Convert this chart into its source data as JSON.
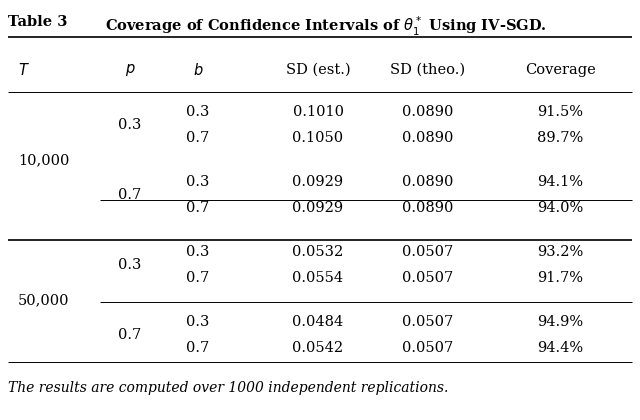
{
  "title": "Table 3",
  "caption": "Coverage of Confidence Intervals of $\\theta_1^*$ Using IV-SGD.",
  "headers": [
    "T",
    "p",
    "b",
    "SD (est.)",
    "SD (theo.)",
    "Coverage"
  ],
  "rows": [
    {
      "T": "10,000",
      "p": "0.3",
      "b": "0.3",
      "sd_est": "0.1010",
      "sd_theo": "0.0890",
      "coverage": "91.5%"
    },
    {
      "T": "",
      "p": "",
      "b": "0.7",
      "sd_est": "0.1050",
      "sd_theo": "0.0890",
      "coverage": "89.7%"
    },
    {
      "T": "",
      "p": "0.7",
      "b": "0.3",
      "sd_est": "0.0929",
      "sd_theo": "0.0890",
      "coverage": "94.1%"
    },
    {
      "T": "",
      "p": "",
      "b": "0.7",
      "sd_est": "0.0929",
      "sd_theo": "0.0890",
      "coverage": "94.0%"
    },
    {
      "T": "50,000",
      "p": "0.3",
      "b": "0.3",
      "sd_est": "0.0532",
      "sd_theo": "0.0507",
      "coverage": "93.2%"
    },
    {
      "T": "",
      "p": "",
      "b": "0.7",
      "sd_est": "0.0554",
      "sd_theo": "0.0507",
      "coverage": "91.7%"
    },
    {
      "T": "",
      "p": "0.7",
      "b": "0.3",
      "sd_est": "0.0484",
      "sd_theo": "0.0507",
      "coverage": "94.9%"
    },
    {
      "T": "",
      "p": "",
      "b": "0.7",
      "sd_est": "0.0542",
      "sd_theo": "0.0507",
      "coverage": "94.4%"
    }
  ],
  "footnote": "The results are computed over 1000 independent replications.",
  "bg_color": "#ffffff",
  "text_color": "#000000",
  "font_size": 10.5
}
